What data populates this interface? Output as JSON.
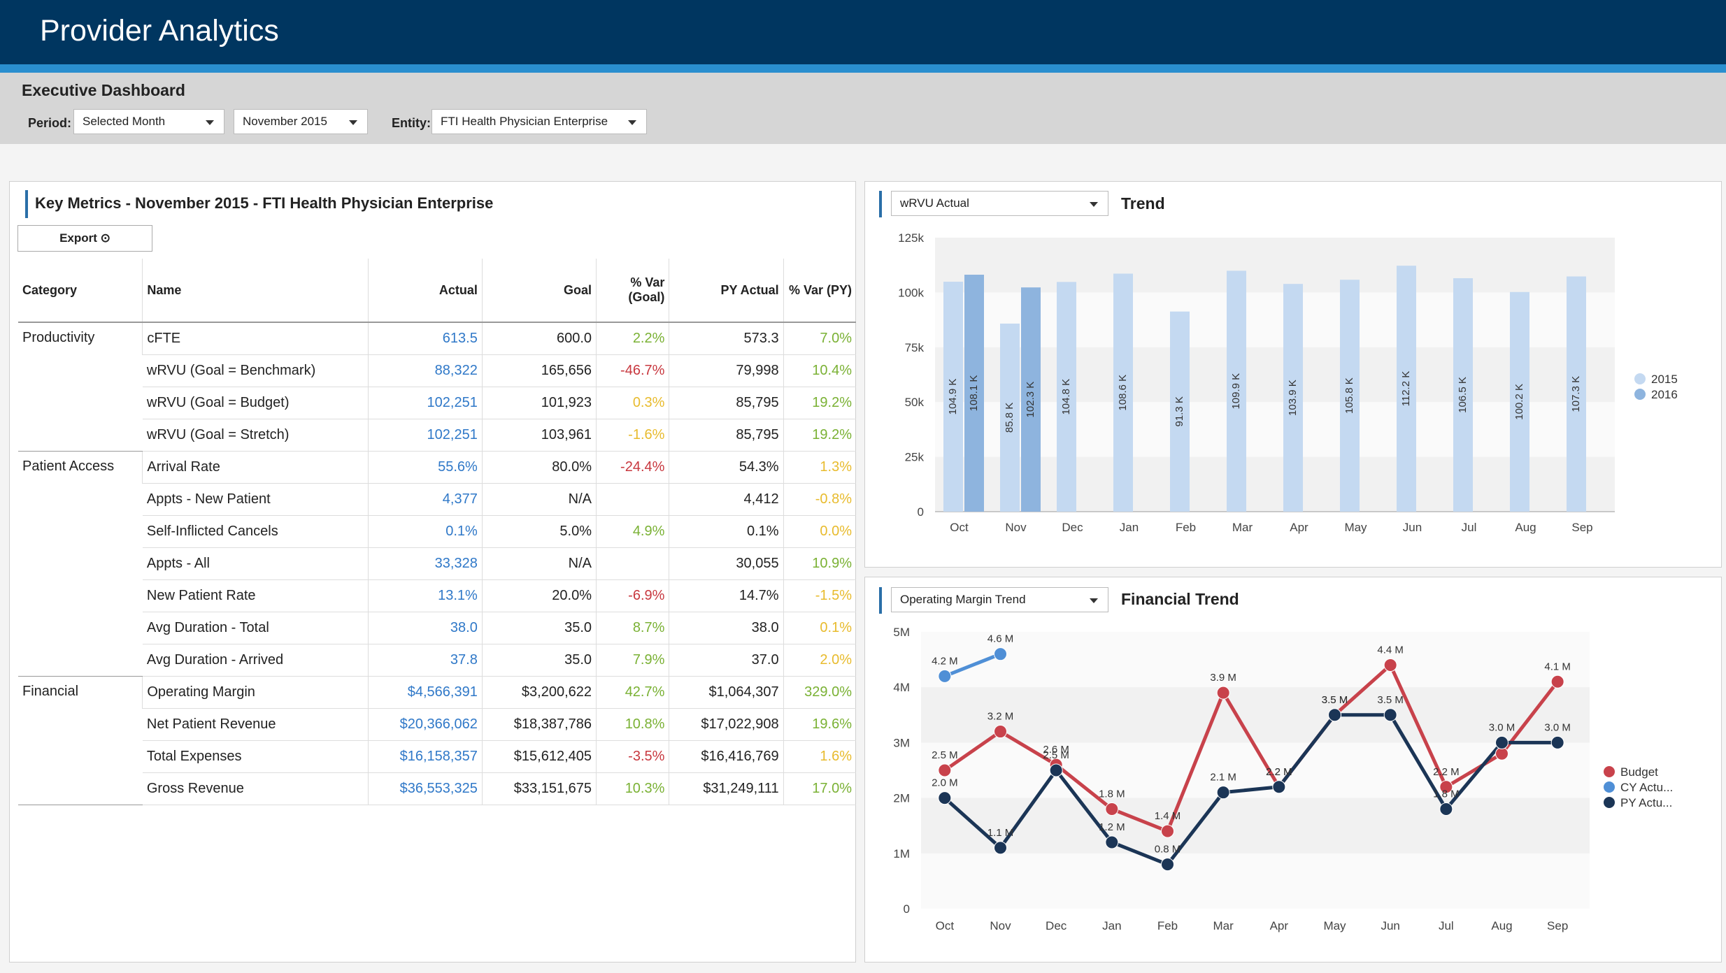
{
  "app": {
    "title": "Provider Analytics"
  },
  "dashboard": {
    "title": "Executive Dashboard",
    "period_label": "Period:",
    "period_value": "Selected Month",
    "month_value": "November 2015",
    "entity_label": "Entity:",
    "entity_value": "FTI Health Physician Enterprise"
  },
  "metrics": {
    "title": "Key Metrics - November 2015 -  FTI Health Physician Enterprise",
    "export_label": "Export ⊙",
    "columns": {
      "category": "Category",
      "name": "Name",
      "actual": "Actual",
      "goal": "Goal",
      "var_goal": "% Var (Goal)",
      "py_actual": "PY Actual",
      "var_py": "% Var (PY)"
    },
    "categories": [
      {
        "label": "Productivity",
        "rows": [
          {
            "name": "cFTE",
            "actual": "613.5",
            "goal": "600.0",
            "var_goal": "2.2%",
            "var_goal_color": "green",
            "py_actual": "573.3",
            "var_py": "7.0%",
            "var_py_color": "green"
          },
          {
            "name": "wRVU (Goal = Benchmark)",
            "actual": "88,322",
            "goal": "165,656",
            "var_goal": "-46.7%",
            "var_goal_color": "red",
            "py_actual": "79,998",
            "var_py": "10.4%",
            "var_py_color": "green"
          },
          {
            "name": "wRVU (Goal = Budget)",
            "actual": "102,251",
            "goal": "101,923",
            "var_goal": "0.3%",
            "var_goal_color": "yellow",
            "py_actual": "85,795",
            "var_py": "19.2%",
            "var_py_color": "green"
          },
          {
            "name": "wRVU (Goal = Stretch)",
            "actual": "102,251",
            "goal": "103,961",
            "var_goal": "-1.6%",
            "var_goal_color": "yellow",
            "py_actual": "85,795",
            "var_py": "19.2%",
            "var_py_color": "green"
          }
        ]
      },
      {
        "label": "Patient Access",
        "rows": [
          {
            "name": "Arrival Rate",
            "actual": "55.6%",
            "goal": "80.0%",
            "var_goal": "-24.4%",
            "var_goal_color": "red",
            "py_actual": "54.3%",
            "var_py": "1.3%",
            "var_py_color": "yellow"
          },
          {
            "name": "Appts - New Patient",
            "actual": "4,377",
            "goal": "N/A",
            "var_goal": "",
            "var_goal_color": "green",
            "py_actual": "4,412",
            "var_py": "-0.8%",
            "var_py_color": "yellow"
          },
          {
            "name": "Self-Inflicted Cancels",
            "actual": "0.1%",
            "goal": "5.0%",
            "var_goal": "4.9%",
            "var_goal_color": "green",
            "py_actual": "0.1%",
            "var_py": "0.0%",
            "var_py_color": "yellow"
          },
          {
            "name": "Appts - All",
            "actual": "33,328",
            "goal": "N/A",
            "var_goal": "",
            "var_goal_color": "green",
            "py_actual": "30,055",
            "var_py": "10.9%",
            "var_py_color": "green"
          },
          {
            "name": "New Patient Rate",
            "actual": "13.1%",
            "goal": "20.0%",
            "var_goal": "-6.9%",
            "var_goal_color": "red",
            "py_actual": "14.7%",
            "var_py": "-1.5%",
            "var_py_color": "yellow"
          },
          {
            "name": "Avg Duration - Total",
            "actual": "38.0",
            "goal": "35.0",
            "var_goal": "8.7%",
            "var_goal_color": "green",
            "py_actual": "38.0",
            "var_py": "0.1%",
            "var_py_color": "yellow"
          },
          {
            "name": "Avg Duration - Arrived",
            "actual": "37.8",
            "goal": "35.0",
            "var_goal": "7.9%",
            "var_goal_color": "green",
            "py_actual": "37.0",
            "var_py": "2.0%",
            "var_py_color": "yellow"
          }
        ]
      },
      {
        "label": "Financial",
        "rows": [
          {
            "name": "Operating Margin",
            "actual": "$4,566,391",
            "goal": "$3,200,622",
            "var_goal": "42.7%",
            "var_goal_color": "green",
            "py_actual": "$1,064,307",
            "var_py": "329.0%",
            "var_py_color": "green"
          },
          {
            "name": "Net Patient Revenue",
            "actual": "$20,366,062",
            "goal": "$18,387,786",
            "var_goal": "10.8%",
            "var_goal_color": "green",
            "py_actual": "$17,022,908",
            "var_py": "19.6%",
            "var_py_color": "green"
          },
          {
            "name": "Total Expenses",
            "actual": "$16,158,357",
            "goal": "$15,612,405",
            "var_goal": "-3.5%",
            "var_goal_color": "red",
            "py_actual": "$16,416,769",
            "var_py": "1.6%",
            "var_py_color": "yellow"
          },
          {
            "name": "Gross Revenue",
            "actual": "$36,553,325",
            "goal": "$33,151,675",
            "var_goal": "10.3%",
            "var_goal_color": "green",
            "py_actual": "$31,249,111",
            "var_py": "17.0%",
            "var_py_color": "green"
          }
        ]
      }
    ]
  },
  "trend": {
    "dropdown_value": "wRVU Actual",
    "title": "Trend"
  },
  "financial": {
    "dropdown_value": "Operating Margin Trend",
    "title": "Financial Trend"
  },
  "colors": {
    "header": "#003660",
    "stripe": "#2a8fcf",
    "bar2015": "#c4d9f1",
    "bar2016": "#8eb4de",
    "budget": "#c8424b",
    "cy": "#4f8fd6",
    "py": "#1b3556"
  },
  "chart_data": [
    {
      "type": "bar",
      "title": "Trend",
      "categories": [
        "Oct",
        "Nov",
        "Dec",
        "Jan",
        "Feb",
        "Mar",
        "Apr",
        "May",
        "Jun",
        "Jul",
        "Aug",
        "Sep"
      ],
      "series": [
        {
          "name": "2015",
          "values": [
            104.9,
            85.8,
            104.8,
            108.6,
            91.3,
            109.9,
            103.9,
            105.8,
            112.2,
            106.5,
            100.2,
            107.3
          ],
          "labels": [
            "104.9 K",
            "85.8 K",
            "104.8 K",
            "108.6 K",
            "91.3 K",
            "109.9 K",
            "103.9 K",
            "105.8 K",
            "112.2 K",
            "106.5 K",
            "100.2 K",
            "107.3 K"
          ]
        },
        {
          "name": "2016",
          "values": [
            108.1,
            102.3,
            null,
            null,
            null,
            null,
            null,
            null,
            null,
            null,
            null,
            null
          ],
          "labels": [
            "108.1 K",
            "102.3 K",
            "",
            "",
            "",
            "",
            "",
            "",
            "",
            "",
            "",
            ""
          ]
        }
      ],
      "yticks": [
        "0",
        "25k",
        "50k",
        "75k",
        "100k",
        "125k"
      ],
      "ylim": [
        0,
        125
      ],
      "legend": "right"
    },
    {
      "type": "line",
      "title": "Financial Trend",
      "categories": [
        "Oct",
        "Nov",
        "Dec",
        "Jan",
        "Feb",
        "Mar",
        "Apr",
        "May",
        "Jun",
        "Jul",
        "Aug",
        "Sep"
      ],
      "series": [
        {
          "name": "Budget",
          "values": [
            2.5,
            3.2,
            2.6,
            1.8,
            1.4,
            3.9,
            2.2,
            3.5,
            4.4,
            2.2,
            2.8,
            4.1
          ],
          "labels": [
            "2.5 M",
            "3.2 M",
            "2.6 M",
            "1.8 M",
            "1.4 M",
            "3.9 M",
            "2.2 M",
            "3.5 M",
            "4.4 M",
            "2.2 M",
            "",
            "4.1 M"
          ]
        },
        {
          "name": "CY Actu...",
          "values": [
            4.2,
            4.6,
            null,
            null,
            null,
            null,
            null,
            null,
            null,
            null,
            null,
            null
          ],
          "labels": [
            "4.2 M",
            "4.6 M",
            "",
            "",
            "",
            "",
            "",
            "",
            "",
            "",
            "",
            ""
          ]
        },
        {
          "name": "PY Actu...",
          "values": [
            2.0,
            1.1,
            2.5,
            1.2,
            0.8,
            2.1,
            2.2,
            3.5,
            3.5,
            1.8,
            3.0,
            3.0
          ],
          "labels": [
            "2.0 M",
            "1.1 M",
            "2.5 M",
            "1.2 M",
            "0.8 M",
            "2.1 M",
            "2.2 M",
            "3.5 M",
            "3.5 M",
            "1.8 M",
            "3.0 M",
            "3.0 M"
          ]
        }
      ],
      "yticks": [
        "0",
        "1M",
        "2M",
        "3M",
        "4M",
        "5M"
      ],
      "ylim": [
        0,
        5
      ],
      "legend": "right"
    }
  ]
}
